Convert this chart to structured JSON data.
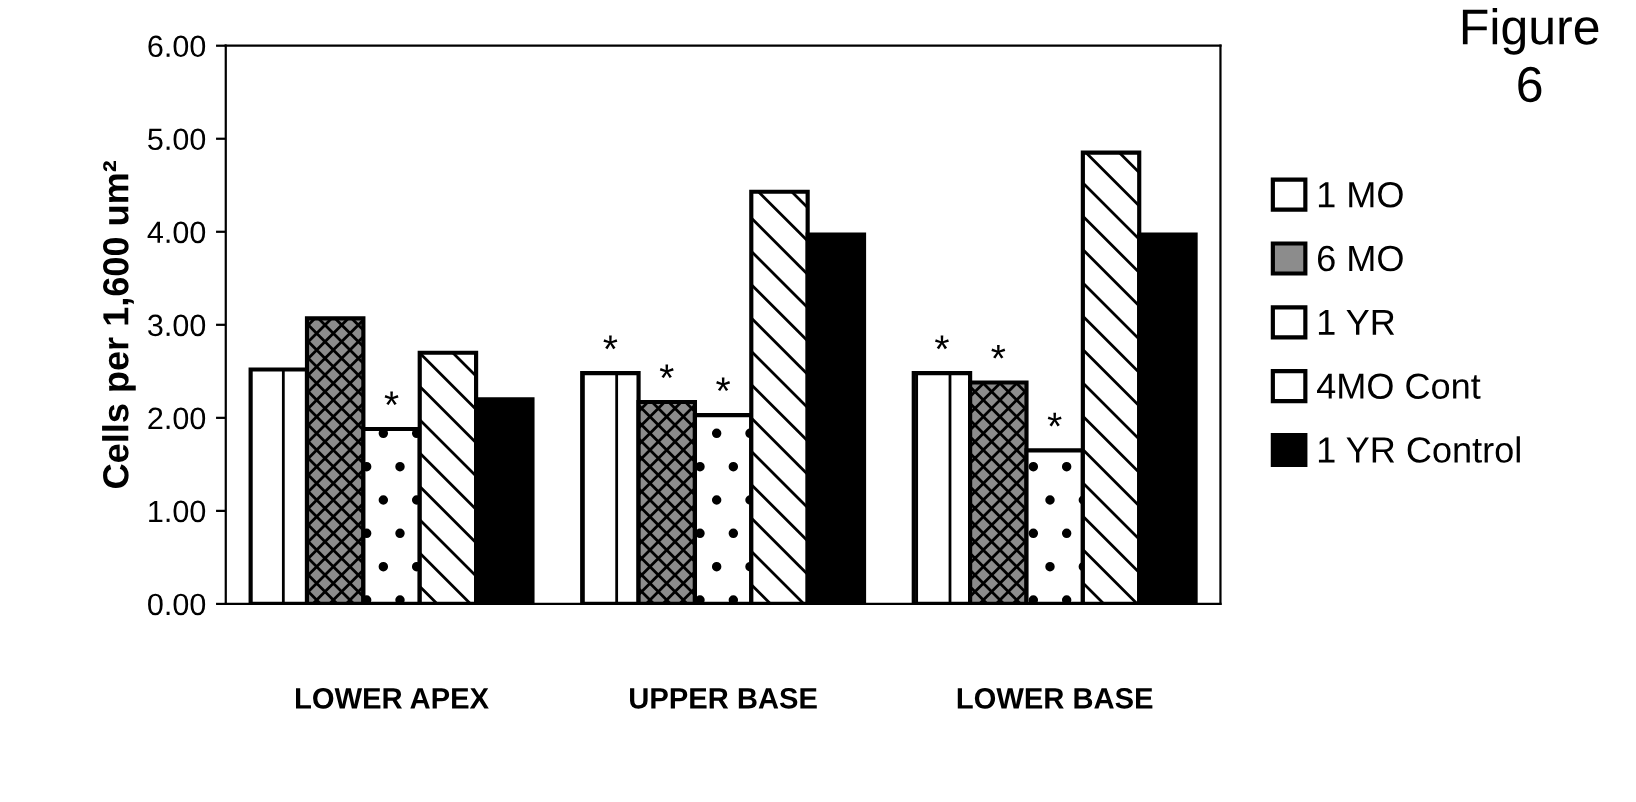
{
  "chart_data": {
    "type": "bar",
    "title": "Figure\n6",
    "ylabel": "Cells per 1,600 um²",
    "categories": [
      "LOWER APEX",
      "UPPER BASE",
      "LOWER BASE"
    ],
    "series": [
      {
        "name": "1 MO",
        "color": "#ffffff",
        "values": [
          2.52,
          2.48,
          2.48
        ],
        "value_labels": [
          null,
          "*",
          "*"
        ]
      },
      {
        "name": "6 MO",
        "color": "#8c8c8c",
        "values": [
          3.07,
          2.17,
          2.38
        ],
        "value_labels": [
          null,
          "*",
          "*"
        ]
      },
      {
        "name": "1 YR",
        "color": "#ffffff",
        "values": [
          1.88,
          2.03,
          1.65
        ],
        "value_labels": [
          "*",
          "*",
          "*"
        ]
      },
      {
        "name": "4MO Cont",
        "color": "#ffffff",
        "values": [
          2.7,
          4.43,
          4.85
        ]
      },
      {
        "name": "1 YR Control",
        "color": "#000000",
        "values": [
          2.2,
          3.97,
          3.97
        ]
      }
    ],
    "ylim": [
      0,
      6
    ],
    "yticks": [
      {
        "value": 0,
        "label": "0.00"
      },
      {
        "value": 1,
        "label": "1.00"
      },
      {
        "value": 2,
        "label": "2.00"
      },
      {
        "value": 3,
        "label": "3.00"
      },
      {
        "value": 4,
        "label": "4.00"
      },
      {
        "value": 5,
        "label": "5.00"
      },
      {
        "value": 6,
        "label": "6.00"
      }
    ],
    "legend": "right",
    "grid": false
  }
}
